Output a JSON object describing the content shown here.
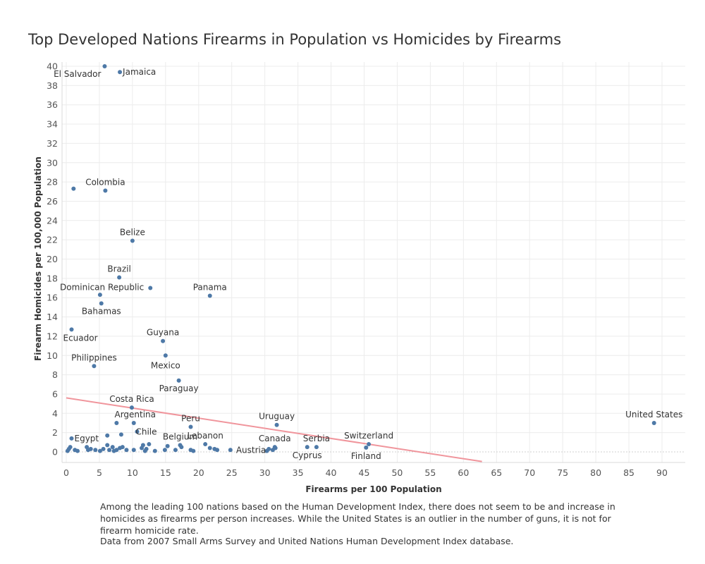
{
  "chart_data": {
    "type": "scatter",
    "title": "Top Developed Nations Firearms in Population vs Homicides by Firearms",
    "xlabel": "Firearms per 100 Population",
    "ylabel": "Firearm Homicides per 100,000 Population",
    "xlim": [
      0,
      93
    ],
    "ylim": [
      -1,
      40.5
    ],
    "xticks": [
      0,
      5,
      10,
      15,
      20,
      25,
      30,
      35,
      40,
      45,
      50,
      55,
      60,
      65,
      70,
      75,
      80,
      85,
      90
    ],
    "yticks": [
      0,
      2,
      4,
      6,
      8,
      10,
      12,
      14,
      16,
      18,
      20,
      22,
      24,
      26,
      28,
      30,
      32,
      34,
      36,
      38,
      40
    ],
    "grid": true,
    "trend_line": {
      "x": [
        0,
        62.8
      ],
      "y": [
        5.6,
        -1
      ]
    },
    "point_color": "#4e79a7",
    "trend_color": "#f0959c",
    "points": [
      {
        "label": "El Salvador",
        "x": 5.8,
        "y": 40.0
      },
      {
        "label": "Jamaica",
        "x": 8.1,
        "y": 39.4
      },
      {
        "label": "Colombia",
        "x": 5.9,
        "y": 27.1
      },
      {
        "label": "",
        "x": 1.1,
        "y": 27.3
      },
      {
        "label": "Belize",
        "x": 10.0,
        "y": 21.9
      },
      {
        "label": "Brazil",
        "x": 8.0,
        "y": 18.1
      },
      {
        "label": "Dominican Republic",
        "x": 12.7,
        "y": 17.0
      },
      {
        "label": "",
        "x": 5.1,
        "y": 16.3
      },
      {
        "label": "Bahamas",
        "x": 5.3,
        "y": 15.4
      },
      {
        "label": "Panama",
        "x": 21.7,
        "y": 16.2
      },
      {
        "label": "Ecuador",
        "x": 0.8,
        "y": 12.7
      },
      {
        "label": "Guyana",
        "x": 14.6,
        "y": 11.5
      },
      {
        "label": "Mexico",
        "x": 15.0,
        "y": 10.0
      },
      {
        "label": "Philippines",
        "x": 4.2,
        "y": 8.9
      },
      {
        "label": "Paraguay",
        "x": 17.0,
        "y": 7.4
      },
      {
        "label": "Costa Rica",
        "x": 9.9,
        "y": 4.6
      },
      {
        "label": "Argentina",
        "x": 10.2,
        "y": 3.0
      },
      {
        "label": "",
        "x": 7.6,
        "y": 3.0
      },
      {
        "label": "Uruguay",
        "x": 31.8,
        "y": 2.8
      },
      {
        "label": "Peru",
        "x": 18.8,
        "y": 2.6
      },
      {
        "label": "United States",
        "x": 88.8,
        "y": 3.0
      },
      {
        "label": "Chile",
        "x": 10.7,
        "y": 2.1
      },
      {
        "label": "Egypt",
        "x": 0.8,
        "y": 1.4
      },
      {
        "label": "",
        "x": 6.2,
        "y": 1.7
      },
      {
        "label": "",
        "x": 8.3,
        "y": 1.8
      },
      {
        "label": "Switzerland",
        "x": 45.7,
        "y": 0.8
      },
      {
        "label": "Lebanon",
        "x": 21.0,
        "y": 0.8
      },
      {
        "label": "Belgium",
        "x": 17.2,
        "y": 0.7
      },
      {
        "label": "Canada",
        "x": 31.5,
        "y": 0.5
      },
      {
        "label": "Serbia",
        "x": 37.8,
        "y": 0.5
      },
      {
        "label": "Cyprus",
        "x": 36.4,
        "y": 0.5
      },
      {
        "label": "Finland",
        "x": 45.3,
        "y": 0.45
      },
      {
        "label": "Austria",
        "x": 24.8,
        "y": 0.2
      },
      {
        "label": "",
        "x": 0.2,
        "y": 0.1
      },
      {
        "label": "",
        "x": 0.4,
        "y": 0.3
      },
      {
        "label": "",
        "x": 0.6,
        "y": 0.5
      },
      {
        "label": "",
        "x": 1.3,
        "y": 0.2
      },
      {
        "label": "",
        "x": 1.7,
        "y": 0.1
      },
      {
        "label": "",
        "x": 3.1,
        "y": 0.5
      },
      {
        "label": "",
        "x": 3.3,
        "y": 0.2
      },
      {
        "label": "",
        "x": 3.7,
        "y": 0.3
      },
      {
        "label": "",
        "x": 4.4,
        "y": 0.2
      },
      {
        "label": "",
        "x": 5.1,
        "y": 0.1
      },
      {
        "label": "",
        "x": 5.6,
        "y": 0.3
      },
      {
        "label": "",
        "x": 6.2,
        "y": 0.7
      },
      {
        "label": "",
        "x": 6.5,
        "y": 0.2
      },
      {
        "label": "",
        "x": 7.0,
        "y": 0.5
      },
      {
        "label": "",
        "x": 7.2,
        "y": 0.1
      },
      {
        "label": "",
        "x": 7.6,
        "y": 0.2
      },
      {
        "label": "",
        "x": 8.1,
        "y": 0.4
      },
      {
        "label": "",
        "x": 8.5,
        "y": 0.5
      },
      {
        "label": "",
        "x": 9.1,
        "y": 0.2
      },
      {
        "label": "",
        "x": 10.2,
        "y": 0.2
      },
      {
        "label": "",
        "x": 11.4,
        "y": 0.4
      },
      {
        "label": "",
        "x": 11.6,
        "y": 0.7
      },
      {
        "label": "",
        "x": 11.9,
        "y": 0.1
      },
      {
        "label": "",
        "x": 12.1,
        "y": 0.3
      },
      {
        "label": "",
        "x": 12.5,
        "y": 0.8
      },
      {
        "label": "",
        "x": 13.4,
        "y": 0.1
      },
      {
        "label": "",
        "x": 14.9,
        "y": 0.2
      },
      {
        "label": "",
        "x": 15.3,
        "y": 0.6
      },
      {
        "label": "",
        "x": 16.5,
        "y": 0.2
      },
      {
        "label": "",
        "x": 17.4,
        "y": 0.5
      },
      {
        "label": "",
        "x": 18.8,
        "y": 0.2
      },
      {
        "label": "",
        "x": 19.2,
        "y": 0.1
      },
      {
        "label": "",
        "x": 21.7,
        "y": 0.4
      },
      {
        "label": "",
        "x": 22.4,
        "y": 0.3
      },
      {
        "label": "",
        "x": 22.8,
        "y": 0.2
      },
      {
        "label": "",
        "x": 30.3,
        "y": 0.1
      },
      {
        "label": "",
        "x": 30.6,
        "y": 0.3
      },
      {
        "label": "",
        "x": 31.2,
        "y": 0.2
      },
      {
        "label": "",
        "x": 31.6,
        "y": 0.4
      }
    ]
  },
  "caption": "Among the leading 100 nations based on the Human Development Index, there does not seem to be and increase in homicides as firearms per person increases. While the United States is an outlier in the number of guns, it is not for firearm homicide rate.",
  "source": "Data from 2007 Small Arms Survey and United Nations Human Development Index database."
}
